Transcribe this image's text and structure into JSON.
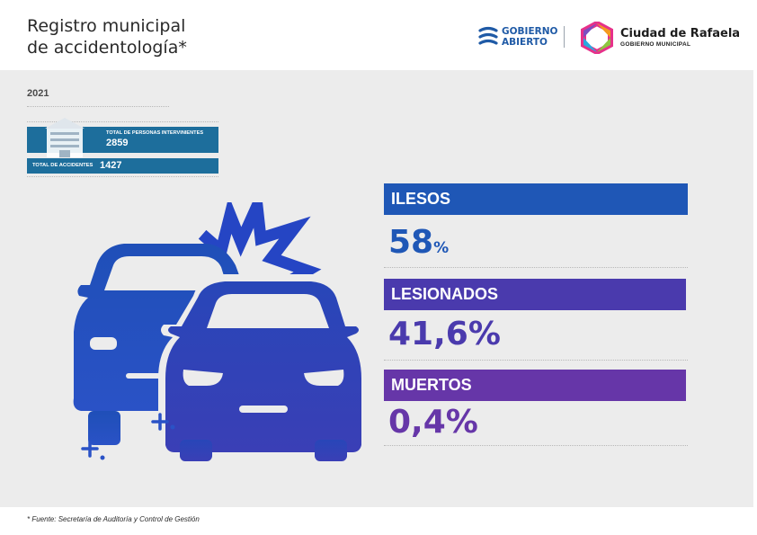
{
  "header": {
    "title_line1": "Registro municipal",
    "title_line2": "de accidentología*",
    "gobierno_abierto": {
      "line1": "GOBIERNO",
      "line2": "ABIERTO"
    },
    "ciudad": {
      "name": "Ciudad de Rafaela",
      "sub": "GOBIERNO MUNICIPAL"
    }
  },
  "year": "2021",
  "stats": {
    "personas_label": "TOTAL DE PERSONAS INTERVINIENTES",
    "personas_value": "2859",
    "accidentes_label": "TOTAL DE ACCIDENTES",
    "accidentes_value": "1427"
  },
  "categories": [
    {
      "label": "ILESOS",
      "value": "58",
      "unit": "%",
      "color": "#1f57b6"
    },
    {
      "label": "LESIONADOS",
      "value": "41,6%",
      "unit": "",
      "color": "#4a3aad"
    },
    {
      "label": "MUERTOS",
      "value": "0,4%",
      "unit": "",
      "color": "#6636a8"
    }
  ],
  "footer": "* Fuente:  Secretaría de Auditoría y Control de Gestión",
  "colors": {
    "accent_blue": "#1f57b6",
    "stat_blue": "#1d6e9c",
    "panel": "#ececec"
  }
}
